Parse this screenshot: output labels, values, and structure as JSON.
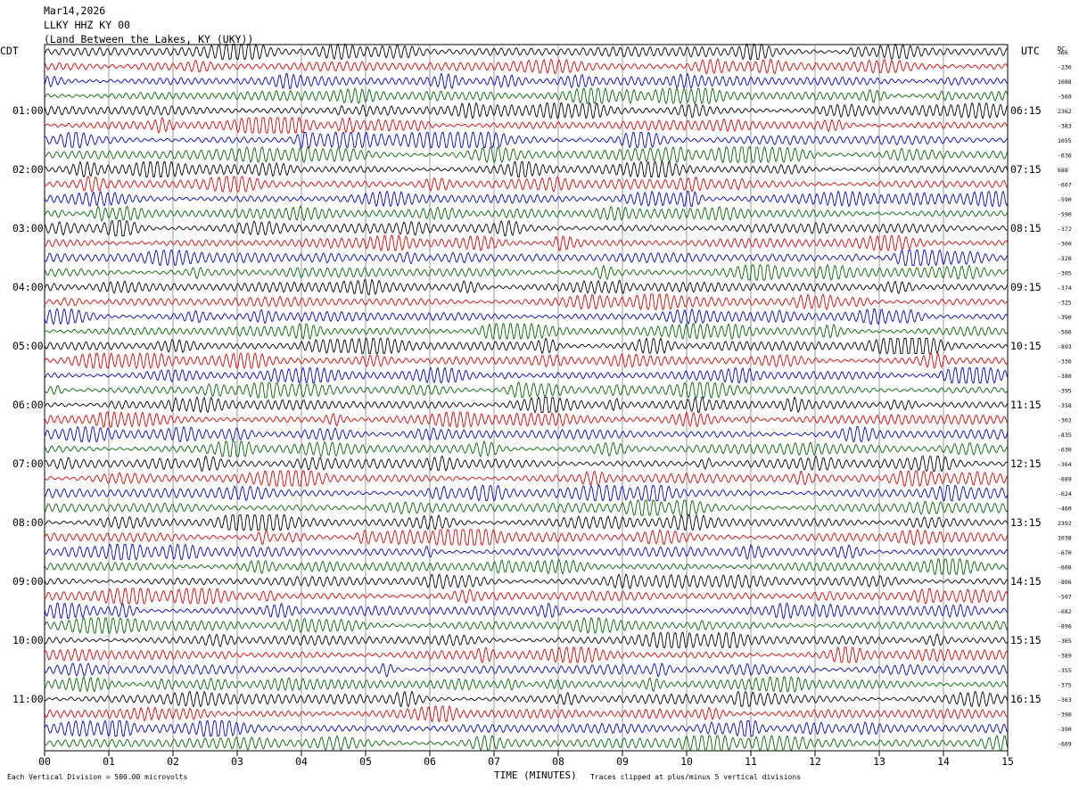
{
  "header": {
    "date": "Mar14,2026",
    "station": "LLKY HHZ KY 00",
    "location": "(Land Between the Lakes, KY (UKY))"
  },
  "left_zone": "CDT",
  "right_zone": "UTC",
  "dc_label": "DC",
  "footer": {
    "left": "Each Vertical Division =  500.00 microvolts",
    "center": "TIME (MINUTES)",
    "right": "Traces clipped at plus/minus 5 vertical divisions"
  },
  "chart_data": {
    "type": "line",
    "title": "",
    "xlabel": "TIME (MINUTES)",
    "xlim": [
      0,
      15
    ],
    "x_ticks": [
      "00",
      "01",
      "02",
      "03",
      "04",
      "05",
      "06",
      "07",
      "08",
      "09",
      "10",
      "11",
      "12",
      "13",
      "14",
      "15"
    ],
    "trace_count": 48,
    "trace_colors": [
      "#000000",
      "#dd0000",
      "#0000cc",
      "#006600"
    ],
    "left_hour_labels": [
      "01:00",
      "02:00",
      "03:00",
      "04:00",
      "05:00",
      "06:00",
      "07:00",
      "08:00",
      "09:00",
      "10:00",
      "11:00"
    ],
    "right_hour_labels": [
      "06:15",
      "07:15",
      "08:15",
      "09:15",
      "10:15",
      "11:15",
      "12:15",
      "13:15",
      "14:15",
      "15:15",
      "16:15"
    ],
    "dc_offsets": [
      "366",
      "-236",
      "1088",
      "-560",
      "2362",
      "-383",
      "1055",
      "-636",
      "688",
      "-607",
      "-590",
      "-590",
      "-372",
      "-300",
      "-328",
      "-305",
      "-374",
      "-325",
      "-390",
      "-566",
      "-893",
      "-336",
      "-380",
      "-395",
      "-358",
      "-302",
      "-835",
      "-630",
      "-364",
      "-689",
      "-624",
      "-460",
      "2392",
      "1038",
      "-670",
      "-608",
      "-806",
      "-507",
      "-682",
      "-896",
      "-365",
      "-389",
      "-355",
      "-375",
      "-363",
      "-390",
      "-390",
      "-669"
    ],
    "vertical_division_microvolts": 500.0,
    "clip_divisions": 5
  }
}
